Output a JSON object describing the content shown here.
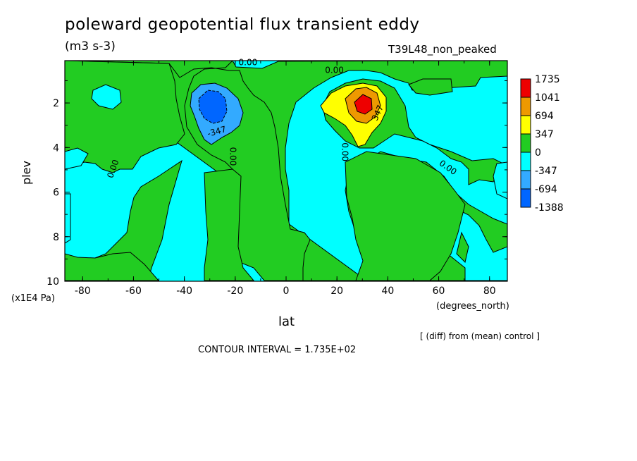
{
  "chart_data": {
    "type": "heatmap",
    "title": "poleward geopotential flux transient eddy",
    "subtitle": "(m3 s-3)",
    "run_label": "T39L48_non_peaked",
    "xlabel": "lat",
    "xunits": "(degrees_north)",
    "ylabel": "plev",
    "yunits": "(x1E4 Pa)",
    "note": "[ (diff) from (mean) control ]",
    "contour_interval_text": "CONTOUR INTERVAL = 1.735E+02",
    "xlim": [
      -87,
      87
    ],
    "ylim": [
      10,
      0.1
    ],
    "x_ticks": [
      -80,
      -60,
      -40,
      -20,
      0,
      20,
      40,
      60,
      80
    ],
    "y_ticks": [
      2,
      4,
      6,
      8,
      10
    ],
    "contour_levels": [
      -1388,
      -694,
      -347,
      0,
      347,
      694,
      1041,
      1735
    ],
    "legend_labels": [
      "1735",
      "1041",
      "694",
      "347",
      "0",
      "-347",
      "-694",
      "-1388"
    ],
    "legend_colors": [
      "#ee0000",
      "#ee9900",
      "#ffff00",
      "#22cc22",
      "#00ffff",
      "#33aaff",
      "#0066ff",
      "#0000ee"
    ],
    "contour_labels": [
      "0.00",
      "0.00",
      "0.00",
      "0.00",
      "0.00",
      "0.00",
      "-347",
      "347"
    ],
    "features": [
      {
        "name": "negative-cell",
        "lat": -30,
        "plev": 2,
        "peak": -1388
      },
      {
        "name": "positive-cell",
        "lat": 30,
        "plev": 2,
        "peak": 1735
      }
    ]
  }
}
